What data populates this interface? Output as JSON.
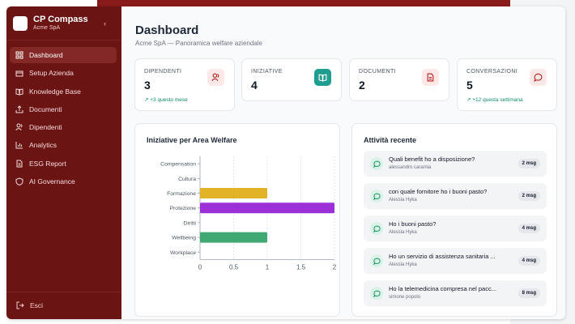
{
  "sidebar": {
    "brand_title": "CP Compass",
    "brand_subtitle": "Acme SpA",
    "items": [
      {
        "label": "Dashboard",
        "icon": "grid-icon",
        "active": true
      },
      {
        "label": "Setup Azienda",
        "icon": "building-icon",
        "active": false
      },
      {
        "label": "Knowledge Base",
        "icon": "book-icon",
        "active": false
      },
      {
        "label": "Documenti",
        "icon": "upload-icon",
        "active": false
      },
      {
        "label": "Dipendenti",
        "icon": "users-icon",
        "active": false
      },
      {
        "label": "Analytics",
        "icon": "bar-chart-icon",
        "active": false
      },
      {
        "label": "ESG Report",
        "icon": "file-icon",
        "active": false
      },
      {
        "label": "AI Governance",
        "icon": "shield-icon",
        "active": false
      }
    ],
    "logout_label": "Esci"
  },
  "header": {
    "title": "Dashboard",
    "subtitle": "Acme SpA — Panoramica welfare aziendale"
  },
  "stats": [
    {
      "label": "DIPENDENTI",
      "value": "3",
      "trend": "↗ +3 questo mese",
      "icon": "users-icon",
      "icon_bg": "#fde8e8",
      "icon_color": "#b91c1c"
    },
    {
      "label": "INIZIATIVE",
      "value": "4",
      "trend": "",
      "icon": "book-icon",
      "icon_bg": "#1f9e8f",
      "icon_color": "#ffffff"
    },
    {
      "label": "DOCUMENTI",
      "value": "2",
      "trend": "",
      "icon": "file-icon",
      "icon_bg": "#fde8e8",
      "icon_color": "#b91c1c"
    },
    {
      "label": "CONVERSAZIONI",
      "value": "5",
      "trend": "↗ +12 questa settimana",
      "icon": "message-icon",
      "icon_bg": "#fde8e8",
      "icon_color": "#b91c1c"
    }
  ],
  "chart_panel": {
    "title": "Iniziative per Area Welfare"
  },
  "chart_data": {
    "type": "bar",
    "orientation": "horizontal",
    "title": "Iniziative per Area Welfare",
    "categories": [
      "Compensation",
      "Cultura",
      "Formazione",
      "Protezione",
      "Diritti",
      "Wellbeing",
      "Workplace"
    ],
    "values": [
      0,
      0,
      1,
      2,
      0,
      1,
      0
    ],
    "colors": [
      "#e2b227",
      "#e2b227",
      "#e2b227",
      "#9b30d9",
      "#3fa873",
      "#3fa873",
      "#3fa873"
    ],
    "xlim": [
      0,
      2
    ],
    "xticks": [
      "0",
      "0.5",
      "1",
      "1.5",
      "2"
    ],
    "grid": true
  },
  "activity": {
    "title": "Attività recente",
    "items": [
      {
        "title": "Quali benefit ho a disposizione?",
        "user": "alessandro caramia",
        "badge": "2 msg"
      },
      {
        "title": "con quale fornitore ho i buoni pasto?",
        "user": "Alessia Hyka",
        "badge": "2 msg"
      },
      {
        "title": "Ho i buoni pasto?",
        "user": "Alessia Hyka",
        "badge": "4 msg"
      },
      {
        "title": "Ho un servizio di assistenza sanitaria ...",
        "user": "Alessia Hyka",
        "badge": "4 msg"
      },
      {
        "title": "Ho la telemedicina compresa nel pacc...",
        "user": "simone popolo",
        "badge": "8 msg"
      }
    ]
  }
}
